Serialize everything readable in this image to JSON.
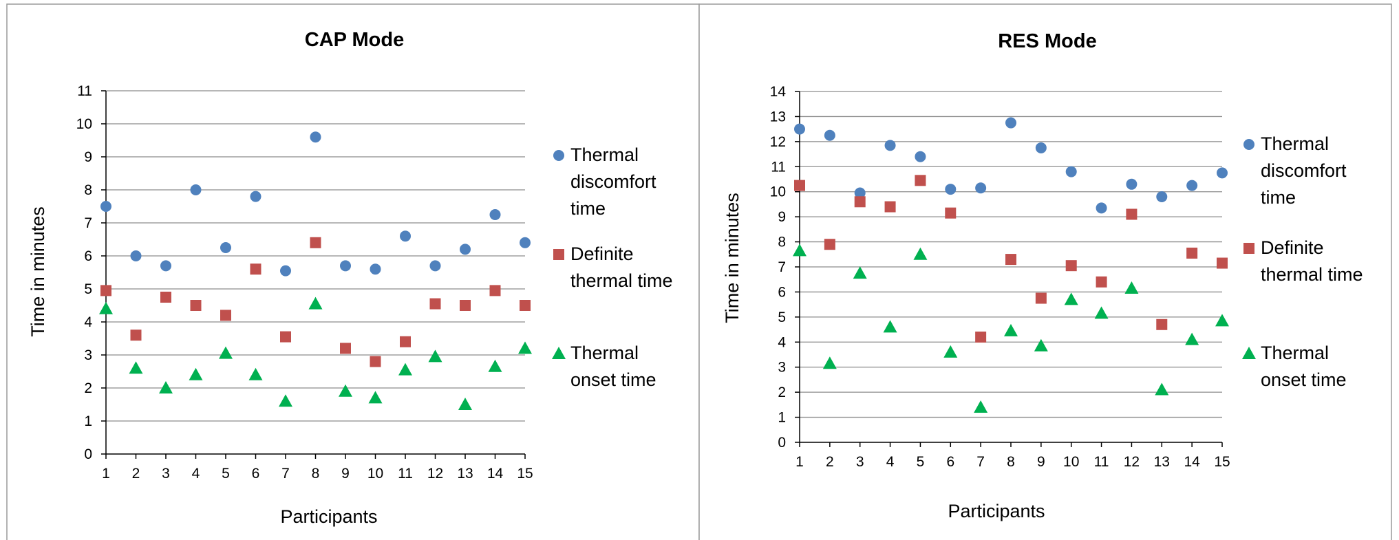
{
  "charts": [
    {
      "id": "cap",
      "chart_data": {
        "type": "scatter",
        "title": "CAP Mode",
        "xlabel": "Participants",
        "ylabel": "Time in minutes",
        "x": [
          1,
          2,
          3,
          4,
          5,
          6,
          7,
          8,
          9,
          10,
          11,
          12,
          13,
          14,
          15
        ],
        "xlim": [
          1,
          15
        ],
        "ylim": [
          0,
          11
        ],
        "yticks": [
          0,
          1,
          2,
          3,
          4,
          5,
          6,
          7,
          8,
          9,
          10,
          11
        ],
        "grid": true,
        "legend_position": "right",
        "series": [
          {
            "name": "Thermal discomfort time",
            "legend_lines": [
              "Thermal",
              "discomfort",
              "time"
            ],
            "marker": "circle",
            "color": "#4F81BD",
            "values": [
              7.5,
              6.0,
              5.7,
              8.0,
              6.25,
              7.8,
              5.55,
              9.6,
              5.7,
              5.6,
              6.6,
              5.7,
              6.2,
              7.25,
              6.4
            ]
          },
          {
            "name": "Definite thermal time",
            "legend_lines": [
              "Definite",
              "thermal time"
            ],
            "marker": "square",
            "color": "#C0504D",
            "values": [
              4.95,
              3.6,
              4.75,
              4.5,
              4.2,
              5.6,
              3.55,
              6.4,
              3.2,
              2.8,
              3.4,
              4.55,
              4.5,
              4.95,
              4.5
            ]
          },
          {
            "name": "Thermal onset time",
            "legend_lines": [
              "Thermal",
              "onset time"
            ],
            "marker": "triangle",
            "color": "#00B050",
            "values": [
              4.4,
              2.6,
              2.0,
              2.4,
              3.05,
              2.4,
              1.6,
              4.55,
              1.9,
              1.7,
              2.55,
              2.95,
              1.5,
              2.65,
              3.2
            ]
          }
        ]
      }
    },
    {
      "id": "res",
      "chart_data": {
        "type": "scatter",
        "title": "RES Mode",
        "xlabel": "Participants",
        "ylabel": "Time in minutes",
        "x": [
          1,
          2,
          3,
          4,
          5,
          6,
          7,
          8,
          9,
          10,
          11,
          12,
          13,
          14,
          15
        ],
        "xlim": [
          1,
          15
        ],
        "ylim": [
          0,
          14
        ],
        "yticks": [
          0,
          1,
          2,
          3,
          4,
          5,
          6,
          7,
          8,
          9,
          10,
          11,
          12,
          13,
          14
        ],
        "grid": true,
        "legend_position": "right",
        "series": [
          {
            "name": "Thermal discomfort time",
            "legend_lines": [
              "Thermal",
              "discomfort",
              "time"
            ],
            "marker": "circle",
            "color": "#4F81BD",
            "values": [
              12.5,
              12.25,
              9.95,
              11.85,
              11.4,
              10.1,
              10.15,
              12.75,
              11.75,
              10.8,
              9.35,
              10.3,
              9.8,
              10.25,
              10.75
            ]
          },
          {
            "name": "Definite thermal time",
            "legend_lines": [
              "Definite",
              "thermal time"
            ],
            "marker": "square",
            "color": "#C0504D",
            "values": [
              10.25,
              7.9,
              9.6,
              9.4,
              10.45,
              9.15,
              4.2,
              7.3,
              5.75,
              7.05,
              6.4,
              9.1,
              4.7,
              7.55,
              7.15
            ]
          },
          {
            "name": "Thermal onset time",
            "legend_lines": [
              "Thermal",
              "onset time"
            ],
            "marker": "triangle",
            "color": "#00B050",
            "values": [
              7.65,
              3.15,
              6.75,
              4.6,
              7.5,
              3.6,
              1.4,
              4.45,
              3.85,
              5.7,
              5.15,
              6.15,
              2.1,
              4.1,
              4.85
            ]
          }
        ]
      }
    }
  ]
}
